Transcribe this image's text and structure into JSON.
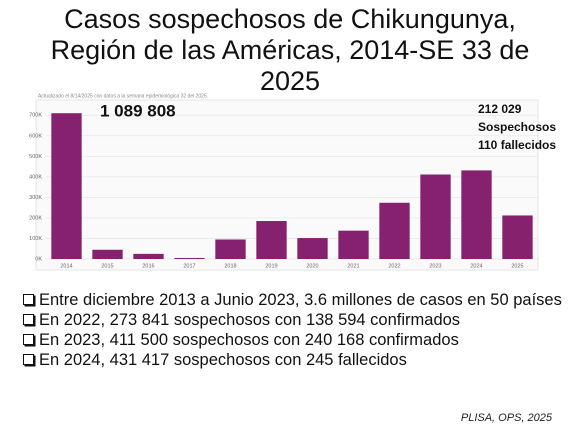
{
  "chart_data": {
    "type": "bar",
    "title": [
      "Casos sospechosos de Chikungunya,",
      "Región de las Américas, 2014-SE 33 de",
      "2025"
    ],
    "subtitle": "Actualizado el 8/14/2025 con datos a la semana epidemiológica 32 del 2025.",
    "categories": [
      "2014",
      "2015",
      "2016",
      "2017",
      "2018",
      "2019",
      "2020",
      "2021",
      "2022",
      "2023",
      "2024",
      "2025"
    ],
    "values": [
      710000,
      45000,
      25000,
      5000,
      95000,
      185000,
      102000,
      138000,
      273841,
      411500,
      431417,
      212029
    ],
    "color": "#86216f",
    "ylim": [
      0,
      750000
    ],
    "yticks": [
      {
        "value": 0,
        "label": "0K"
      },
      {
        "value": 100000,
        "label": "100K"
      },
      {
        "value": 200000,
        "label": "200K"
      },
      {
        "value": 300000,
        "label": "300K"
      },
      {
        "value": 400000,
        "label": "400K"
      },
      {
        "value": 500000,
        "label": "500K"
      },
      {
        "value": 600000,
        "label": "600K"
      },
      {
        "value": 700000,
        "label": "700K"
      }
    ],
    "grid": true,
    "annotations": [
      "1 089 808",
      "212 029",
      "Sospechosos",
      "110 fallecidos"
    ]
  },
  "bullets": [
    "Entre diciembre 2013 a Junio 2023, 3.6 millones de casos en 50 países",
    "En 2022, 273 841 sospechosos con 138 594 confirmados",
    "En 2023, 411 500 sospechosos con 240 168 confirmados",
    "En 2024, 431 417 sospechosos con 245 fallecidos"
  ],
  "source": "PLISA, OPS, 2025"
}
